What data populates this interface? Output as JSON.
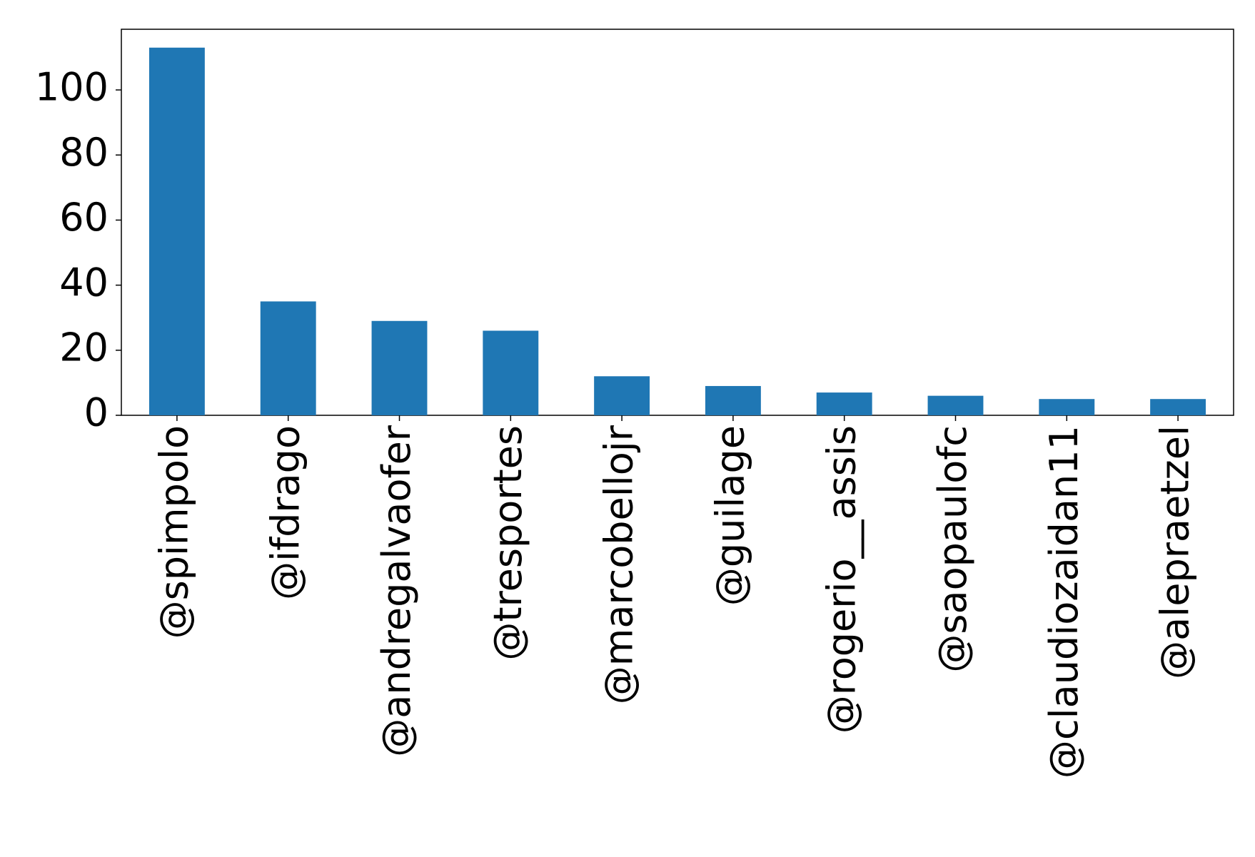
{
  "chart_data": {
    "type": "bar",
    "categories": [
      "@spimpolo",
      "@ifdrago",
      "@andregalvaofer",
      "@tresportes",
      "@marcobellojr",
      "@guilage",
      "@rogerio__assis",
      "@saopaulofc",
      "@claudiozaidan11",
      "@alepraetzel"
    ],
    "values": [
      113,
      35,
      29,
      26,
      12,
      9,
      7,
      6,
      5,
      5
    ],
    "color": "#1f77b4",
    "ylim": [
      0,
      118.65
    ],
    "yticks": [
      0,
      20,
      40,
      60,
      80,
      100
    ],
    "grid": false
  }
}
